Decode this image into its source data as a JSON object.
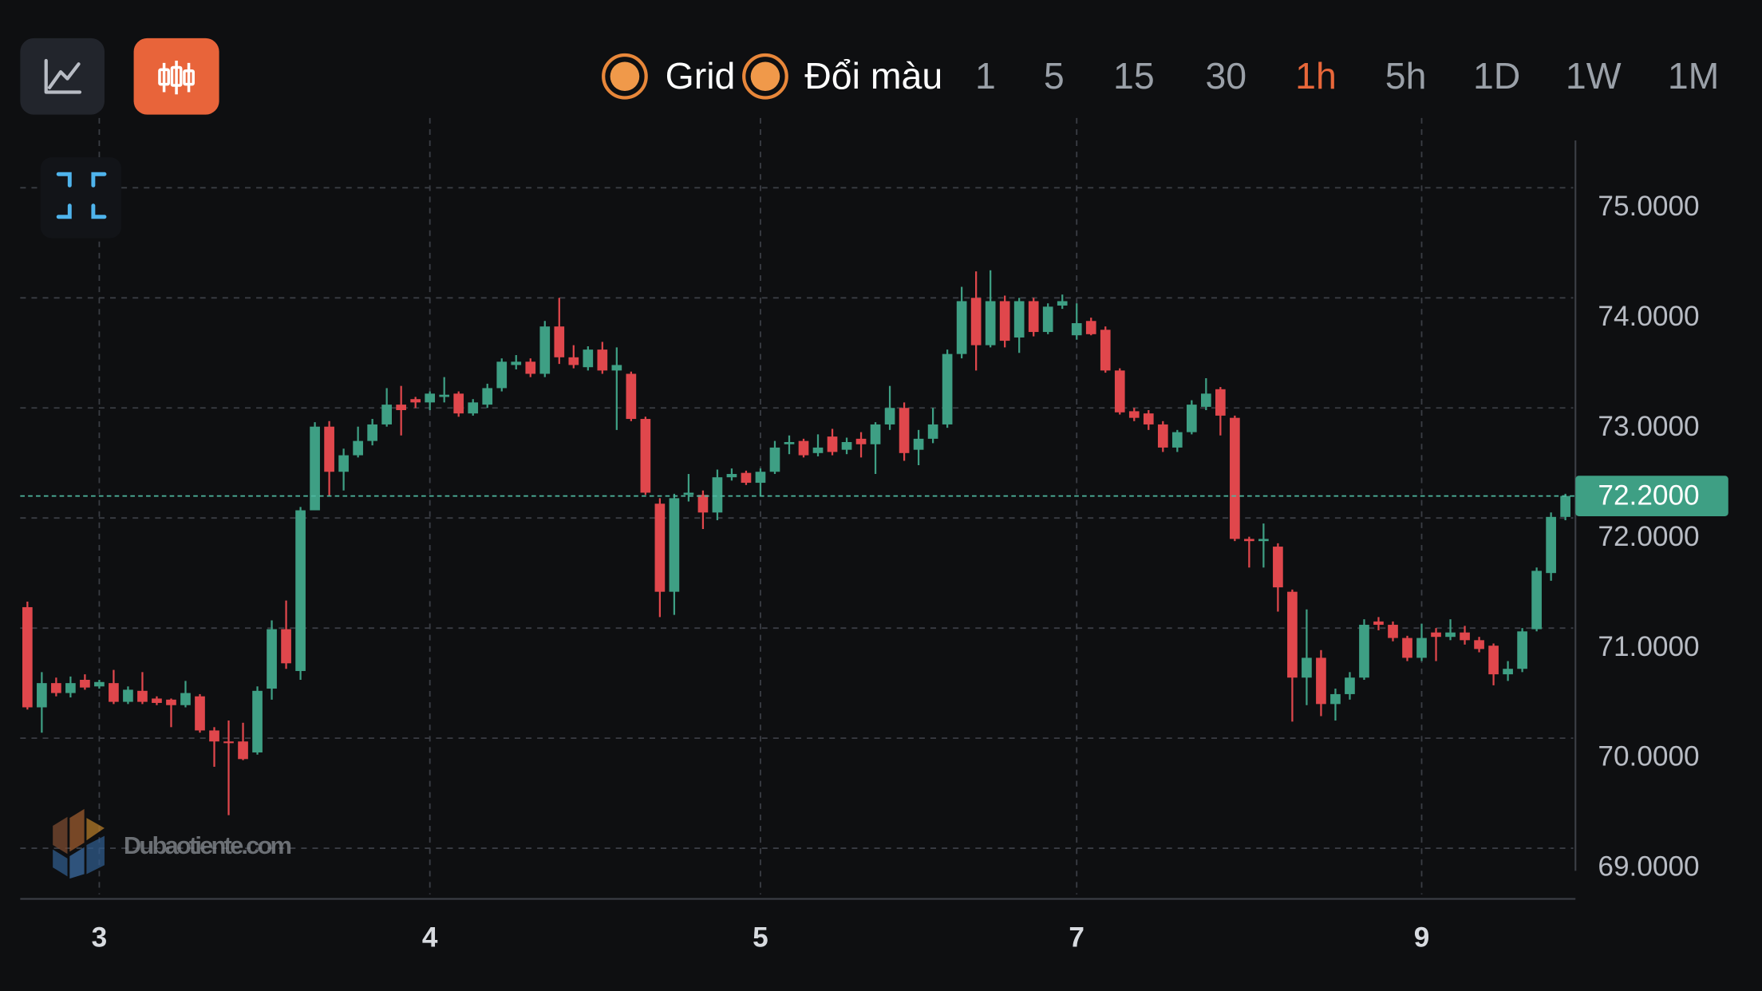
{
  "toolbar": {
    "grid_label": "Grid",
    "color_label": "Đổi màu",
    "timeframes": [
      "1",
      "5",
      "15",
      "30",
      "1h",
      "5h",
      "1D",
      "1W",
      "1M"
    ],
    "active_timeframe": 4
  },
  "watermark": "Dubaotiente.com",
  "chart_data": {
    "type": "candlestick",
    "up_color": "#3e9f84",
    "down_color": "#e0474c",
    "grid": true,
    "ylim": [
      68.54,
      75.43
    ],
    "yticks": [
      {
        "value": 69,
        "label": "69.0000"
      },
      {
        "value": 70,
        "label": "70.0000"
      },
      {
        "value": 71,
        "label": "71.0000"
      },
      {
        "value": 72,
        "label": "72.0000"
      },
      {
        "value": 73,
        "label": "73.0000"
      },
      {
        "value": 74,
        "label": "74.0000"
      },
      {
        "value": 75,
        "label": "75.0000"
      }
    ],
    "xlim": [
      -0.5,
      107.7
    ],
    "xticks": [
      {
        "value": 5,
        "label": "3"
      },
      {
        "value": 28,
        "label": "4"
      },
      {
        "value": 51,
        "label": "5"
      },
      {
        "value": 73,
        "label": "7"
      },
      {
        "value": 97,
        "label": "9"
      }
    ],
    "current_price": {
      "value": 72.2,
      "label": "72.2000"
    },
    "open": [
      71.19,
      70.28,
      70.5,
      70.41,
      70.53,
      70.47,
      70.5,
      70.33,
      70.43,
      70.36,
      70.35,
      70.3,
      70.38,
      70.07,
      69.97,
      69.97,
      69.87,
      70.45,
      70.99,
      70.61,
      72.07,
      72.83,
      72.42,
      72.57,
      72.7,
      72.85,
      73.03,
      73.08,
      73.05,
      73.1,
      73.13,
      72.95,
      73.03,
      73.18,
      73.39,
      73.42,
      73.31,
      73.74,
      73.46,
      73.37,
      73.53,
      73.34,
      73.31,
      72.9,
      72.13,
      71.33,
      72.21,
      72.21,
      72.05,
      72.37,
      72.41,
      72.32,
      72.42,
      72.67,
      72.7,
      72.59,
      72.74,
      72.62,
      72.72,
      72.67,
      72.85,
      73.0,
      72.62,
      72.72,
      72.85,
      73.49,
      74.0,
      73.57,
      73.97,
      73.64,
      73.97,
      73.69,
      73.93,
      73.66,
      73.79,
      73.71,
      73.34,
      72.97,
      72.95,
      72.85,
      72.64,
      72.78,
      73.01,
      73.17,
      72.91,
      71.81,
      71.79,
      71.74,
      71.33,
      70.55,
      70.73,
      70.31,
      70.4,
      70.55,
      71.06,
      71.03,
      70.91,
      70.73,
      70.96,
      70.92,
      70.96,
      70.89,
      70.84,
      70.58,
      70.63,
      70.99,
      71.5,
      72.01
    ],
    "high": [
      71.24,
      70.6,
      70.55,
      70.56,
      70.58,
      70.53,
      70.62,
      70.47,
      70.6,
      70.38,
      70.36,
      70.52,
      70.4,
      70.1,
      70.16,
      70.14,
      70.47,
      71.07,
      71.25,
      72.1,
      72.87,
      72.88,
      72.63,
      72.83,
      72.9,
      73.18,
      73.2,
      73.1,
      73.15,
      73.28,
      73.15,
      73.08,
      73.22,
      73.45,
      73.48,
      73.45,
      73.79,
      74.0,
      73.57,
      73.56,
      73.6,
      73.55,
      73.33,
      72.92,
      72.18,
      72.22,
      72.4,
      72.25,
      72.44,
      72.45,
      72.43,
      72.45,
      72.7,
      72.75,
      72.72,
      72.76,
      72.81,
      72.73,
      72.78,
      72.87,
      73.2,
      73.05,
      72.8,
      73.0,
      73.53,
      74.1,
      74.24,
      74.25,
      74.02,
      74.0,
      74.0,
      73.95,
      74.03,
      73.95,
      73.82,
      73.74,
      73.36,
      73.0,
      72.98,
      72.88,
      72.8,
      73.07,
      73.27,
      73.19,
      72.93,
      71.83,
      71.95,
      71.77,
      71.35,
      71.17,
      70.8,
      70.45,
      70.6,
      71.08,
      71.1,
      71.06,
      70.93,
      71.04,
      71.0,
      71.08,
      71.02,
      70.92,
      70.86,
      70.7,
      71.0,
      71.55,
      72.05,
      72.22
    ],
    "low": [
      70.26,
      70.05,
      70.38,
      70.37,
      70.44,
      70.45,
      70.31,
      70.31,
      70.31,
      70.3,
      70.1,
      70.28,
      70.05,
      69.74,
      69.3,
      69.8,
      69.85,
      70.35,
      70.63,
      70.53,
      72.07,
      72.2,
      72.25,
      72.55,
      72.66,
      72.83,
      72.75,
      73.0,
      72.98,
      73.05,
      72.92,
      72.93,
      73.0,
      73.15,
      73.35,
      73.28,
      73.28,
      73.4,
      73.36,
      73.34,
      73.31,
      72.8,
      72.88,
      72.21,
      71.1,
      71.12,
      72.15,
      71.9,
      71.98,
      72.34,
      72.3,
      72.2,
      72.4,
      72.58,
      72.55,
      72.56,
      72.57,
      72.58,
      72.55,
      72.4,
      72.8,
      72.52,
      72.48,
      72.68,
      72.82,
      73.45,
      73.34,
      73.55,
      73.55,
      73.5,
      73.65,
      73.67,
      73.9,
      73.62,
      73.66,
      73.32,
      72.94,
      72.88,
      72.8,
      72.6,
      72.6,
      72.76,
      72.98,
      72.75,
      71.79,
      71.55,
      71.55,
      71.15,
      70.15,
      70.3,
      70.2,
      70.16,
      70.35,
      70.53,
      70.98,
      70.88,
      70.7,
      70.7,
      70.7,
      70.89,
      70.85,
      70.78,
      70.48,
      70.52,
      70.6,
      70.97,
      71.43,
      71.98
    ],
    "close": [
      70.28,
      70.5,
      70.41,
      70.5,
      70.46,
      70.51,
      70.33,
      70.44,
      70.33,
      70.32,
      70.3,
      70.41,
      70.07,
      69.97,
      69.96,
      69.81,
      70.43,
      70.99,
      70.68,
      72.07,
      72.83,
      72.42,
      72.57,
      72.7,
      72.85,
      73.03,
      72.98,
      73.05,
      73.13,
      73.12,
      72.95,
      73.05,
      73.18,
      73.42,
      73.42,
      73.31,
      73.74,
      73.46,
      73.39,
      73.53,
      73.34,
      73.39,
      72.9,
      72.23,
      71.33,
      72.18,
      72.23,
      72.05,
      72.37,
      72.4,
      72.32,
      72.42,
      72.64,
      72.69,
      72.57,
      72.64,
      72.6,
      72.69,
      72.67,
      72.85,
      73.0,
      72.59,
      72.72,
      72.85,
      73.49,
      73.97,
      73.57,
      73.97,
      73.61,
      73.97,
      73.69,
      73.92,
      73.97,
      73.77,
      73.67,
      73.34,
      72.96,
      72.91,
      72.85,
      72.64,
      72.78,
      73.03,
      73.13,
      72.93,
      71.81,
      71.79,
      71.81,
      71.37,
      70.55,
      70.73,
      70.31,
      70.4,
      70.55,
      71.03,
      71.03,
      70.91,
      70.73,
      70.91,
      70.92,
      70.96,
      70.89,
      70.81,
      70.58,
      70.63,
      70.97,
      71.52,
      72.01,
      72.2
    ]
  }
}
